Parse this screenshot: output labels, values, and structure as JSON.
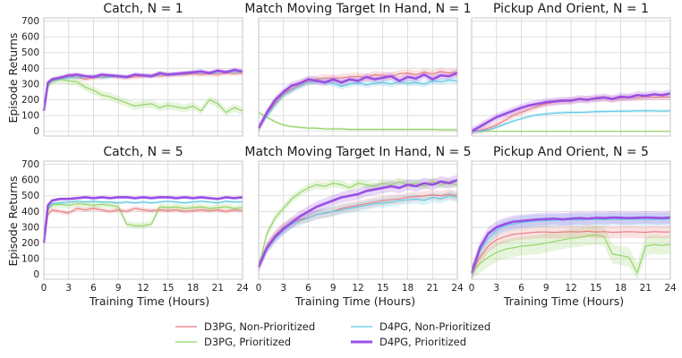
{
  "colors": {
    "d3pg_np": "#e8797d",
    "d3pg_p": "#8fd35f",
    "d4pg_np": "#5bc6e3",
    "d4pg_p": "#9b4fe3"
  },
  "legend": [
    {
      "label": "D3PG, Non-Prioritized",
      "series": "d3pg_np"
    },
    {
      "label": "D3PG, Prioritized",
      "series": "d3pg_p"
    },
    {
      "label": "D4PG, Non-Prioritized",
      "series": "d4pg_np"
    },
    {
      "label": "D4PG, Prioritized",
      "series": "d4pg_p"
    }
  ],
  "ylabel": "Episode Returns",
  "xlabel": "Training Time (Hours)",
  "chart_data": [
    {
      "type": "line",
      "title": "Catch, N = 1",
      "xlim": [
        0,
        24
      ],
      "ylim": [
        -30,
        720
      ],
      "xticks": [
        "0",
        "3",
        "6",
        "9",
        "12",
        "15",
        "18",
        "21",
        "24"
      ],
      "yticks": [
        "0",
        "100",
        "200",
        "300",
        "400",
        "500",
        "600",
        "700"
      ],
      "x": [
        0,
        0.5,
        1,
        2,
        3,
        4,
        5,
        6,
        7,
        8,
        9,
        10,
        11,
        12,
        13,
        14,
        15,
        16,
        17,
        18,
        19,
        20,
        21,
        22,
        23,
        24
      ],
      "series": [
        {
          "name": "D3PG, Non-Prioritized",
          "key": "d3pg_np",
          "values": [
            130,
            300,
            320,
            340,
            350,
            345,
            330,
            340,
            345,
            350,
            345,
            340,
            345,
            350,
            355,
            350,
            355,
            360,
            360,
            365,
            360,
            365,
            360,
            370,
            365,
            370
          ],
          "band": 15
        },
        {
          "name": "D3PG, Prioritized",
          "key": "d3pg_p",
          "values": [
            130,
            290,
            320,
            330,
            320,
            315,
            280,
            260,
            230,
            220,
            200,
            180,
            160,
            170,
            175,
            150,
            165,
            155,
            145,
            160,
            130,
            200,
            175,
            120,
            150,
            130
          ],
          "band": 25
        },
        {
          "name": "D4PG, Non-Prioritized",
          "key": "d4pg_np",
          "values": [
            130,
            300,
            320,
            335,
            340,
            345,
            345,
            350,
            340,
            345,
            350,
            345,
            355,
            355,
            350,
            360,
            365,
            360,
            365,
            370,
            375,
            370,
            375,
            380,
            375,
            380
          ],
          "band": 12
        },
        {
          "name": "D4PG, Prioritized",
          "key": "d4pg_p",
          "values": [
            130,
            310,
            330,
            340,
            355,
            360,
            350,
            345,
            360,
            355,
            350,
            345,
            360,
            355,
            350,
            370,
            360,
            365,
            370,
            375,
            380,
            370,
            385,
            375,
            390,
            380
          ],
          "band": 15
        }
      ]
    },
    {
      "type": "line",
      "title": "Match Moving Target In Hand, N = 1",
      "xlim": [
        0,
        24
      ],
      "ylim": [
        -30,
        720
      ],
      "xticks": [
        "0",
        "3",
        "6",
        "9",
        "12",
        "15",
        "18",
        "21",
        "24"
      ],
      "yticks": [
        "0",
        "100",
        "200",
        "300",
        "400",
        "500",
        "600",
        "700"
      ],
      "x": [
        0,
        1,
        2,
        3,
        4,
        5,
        6,
        7,
        8,
        9,
        10,
        11,
        12,
        13,
        14,
        15,
        16,
        17,
        18,
        19,
        20,
        21,
        22,
        23,
        24
      ],
      "series": [
        {
          "name": "D3PG, Non-Prioritized",
          "key": "d3pg_np",
          "values": [
            20,
            110,
            180,
            240,
            270,
            300,
            320,
            330,
            340,
            335,
            340,
            345,
            350,
            340,
            360,
            355,
            350,
            365,
            370,
            360,
            375,
            365,
            380,
            370,
            375
          ],
          "band": 25
        },
        {
          "name": "D3PG, Prioritized",
          "key": "d3pg_p",
          "values": [
            120,
            90,
            60,
            40,
            30,
            25,
            20,
            20,
            15,
            15,
            15,
            12,
            12,
            12,
            12,
            12,
            12,
            12,
            12,
            12,
            12,
            12,
            10,
            10,
            10
          ],
          "band": 8
        },
        {
          "name": "D4PG, Non-Prioritized",
          "key": "d4pg_np",
          "values": [
            20,
            100,
            170,
            230,
            260,
            290,
            310,
            320,
            315,
            305,
            285,
            300,
            310,
            295,
            305,
            310,
            300,
            315,
            305,
            310,
            300,
            320,
            315,
            325,
            320
          ],
          "band": 20
        },
        {
          "name": "D4PG, Prioritized",
          "key": "d4pg_p",
          "values": [
            20,
            120,
            200,
            250,
            290,
            305,
            330,
            320,
            310,
            330,
            310,
            330,
            320,
            345,
            330,
            340,
            350,
            320,
            345,
            335,
            360,
            330,
            355,
            350,
            370
          ],
          "band": 25
        }
      ]
    },
    {
      "type": "line",
      "title": "Pickup And Orient, N = 1",
      "xlim": [
        0,
        24
      ],
      "ylim": [
        -30,
        720
      ],
      "xticks": [
        "0",
        "3",
        "6",
        "9",
        "12",
        "15",
        "18",
        "21",
        "24"
      ],
      "yticks": [
        "0",
        "100",
        "200",
        "300",
        "400",
        "500",
        "600",
        "700"
      ],
      "x": [
        0,
        1,
        2,
        3,
        4,
        5,
        6,
        7,
        8,
        9,
        10,
        11,
        12,
        13,
        14,
        15,
        16,
        17,
        18,
        19,
        20,
        21,
        22,
        23,
        24
      ],
      "series": [
        {
          "name": "D3PG, Non-Prioritized",
          "key": "d3pg_np",
          "values": [
            0,
            5,
            20,
            40,
            70,
            100,
            120,
            140,
            160,
            175,
            185,
            190,
            195,
            200,
            205,
            205,
            210,
            205,
            210,
            215,
            210,
            220,
            215,
            220,
            215
          ],
          "band": 20
        },
        {
          "name": "D3PG, Prioritized",
          "key": "d3pg_p",
          "values": [
            0,
            0,
            0,
            0,
            0,
            0,
            0,
            0,
            0,
            0,
            0,
            0,
            0,
            0,
            0,
            0,
            0,
            0,
            0,
            0,
            0,
            0,
            0,
            0,
            0
          ],
          "band": 2
        },
        {
          "name": "D4PG, Non-Prioritized",
          "key": "d4pg_np",
          "values": [
            0,
            0,
            10,
            25,
            45,
            65,
            80,
            95,
            105,
            110,
            115,
            118,
            120,
            120,
            122,
            125,
            125,
            127,
            128,
            128,
            130,
            130,
            130,
            128,
            130
          ],
          "band": 10
        },
        {
          "name": "D4PG, Prioritized",
          "key": "d4pg_p",
          "values": [
            0,
            30,
            60,
            90,
            110,
            130,
            150,
            165,
            175,
            185,
            190,
            195,
            195,
            205,
            200,
            210,
            215,
            205,
            220,
            215,
            230,
            225,
            235,
            230,
            240
          ],
          "band": 25
        }
      ]
    },
    {
      "type": "line",
      "title": "Catch, N = 5",
      "xlim": [
        0,
        24
      ],
      "ylim": [
        -30,
        720
      ],
      "xticks": [
        "0",
        "3",
        "6",
        "9",
        "12",
        "15",
        "18",
        "21",
        "24"
      ],
      "yticks": [
        "0",
        "100",
        "200",
        "300",
        "400",
        "500",
        "600",
        "700"
      ],
      "x": [
        0,
        0.5,
        1,
        2,
        3,
        4,
        5,
        6,
        7,
        8,
        9,
        10,
        11,
        12,
        13,
        14,
        15,
        16,
        17,
        18,
        19,
        20,
        21,
        22,
        23,
        24
      ],
      "series": [
        {
          "name": "D3PG, Non-Prioritized",
          "key": "d3pg_np",
          "values": [
            200,
            380,
            410,
            400,
            390,
            420,
            410,
            420,
            410,
            400,
            410,
            400,
            420,
            410,
            405,
            410,
            405,
            410,
            400,
            405,
            410,
            405,
            410,
            400,
            410,
            405
          ],
          "band": 15
        },
        {
          "name": "D3PG, Prioritized",
          "key": "d3pg_p",
          "values": [
            200,
            410,
            440,
            445,
            440,
            450,
            445,
            440,
            445,
            440,
            430,
            320,
            310,
            310,
            320,
            430,
            425,
            430,
            420,
            425,
            430,
            420,
            425,
            430,
            420,
            425
          ],
          "band": 20
        },
        {
          "name": "D4PG, Non-Prioritized",
          "key": "d4pg_np",
          "values": [
            200,
            420,
            450,
            455,
            460,
            465,
            460,
            465,
            460,
            460,
            455,
            460,
            455,
            460,
            455,
            460,
            465,
            460,
            455,
            460,
            465,
            460,
            455,
            465,
            460,
            460
          ],
          "band": 10
        },
        {
          "name": "D4PG, Prioritized",
          "key": "d4pg_p",
          "values": [
            200,
            440,
            470,
            480,
            480,
            485,
            490,
            485,
            490,
            485,
            490,
            490,
            485,
            490,
            485,
            490,
            490,
            485,
            490,
            485,
            490,
            485,
            480,
            490,
            485,
            490
          ],
          "band": 10
        }
      ]
    },
    {
      "type": "line",
      "title": "Match Moving Target In Hand, N = 5",
      "xlim": [
        0,
        24
      ],
      "ylim": [
        -30,
        720
      ],
      "xticks": [
        "0",
        "3",
        "6",
        "9",
        "12",
        "15",
        "18",
        "21",
        "24"
      ],
      "yticks": [
        "0",
        "100",
        "200",
        "300",
        "400",
        "500",
        "600",
        "700"
      ],
      "x": [
        0,
        1,
        2,
        3,
        4,
        5,
        6,
        7,
        8,
        9,
        10,
        11,
        12,
        13,
        14,
        15,
        16,
        17,
        18,
        19,
        20,
        21,
        22,
        23,
        24
      ],
      "series": [
        {
          "name": "D3PG, Non-Prioritized",
          "key": "d3pg_np",
          "values": [
            50,
            180,
            250,
            300,
            330,
            350,
            360,
            380,
            390,
            400,
            420,
            430,
            440,
            450,
            460,
            470,
            475,
            480,
            490,
            495,
            500,
            505,
            500,
            510,
            500
          ],
          "band": 30
        },
        {
          "name": "D3PG, Prioritized",
          "key": "d3pg_p",
          "values": [
            50,
            260,
            360,
            420,
            480,
            520,
            550,
            570,
            560,
            580,
            570,
            550,
            580,
            570,
            560,
            580,
            570,
            590,
            570,
            580,
            560,
            590,
            570,
            580,
            570
          ],
          "band": 25
        },
        {
          "name": "D4PG, Non-Prioritized",
          "key": "d4pg_np",
          "values": [
            50,
            160,
            230,
            280,
            320,
            340,
            360,
            380,
            390,
            400,
            410,
            420,
            430,
            440,
            450,
            455,
            460,
            470,
            475,
            480,
            470,
            490,
            480,
            500,
            490
          ],
          "band": 30
        },
        {
          "name": "D4PG, Prioritized",
          "key": "d4pg_p",
          "values": [
            50,
            170,
            240,
            290,
            330,
            370,
            400,
            430,
            450,
            470,
            490,
            500,
            510,
            530,
            540,
            550,
            560,
            550,
            570,
            560,
            580,
            570,
            590,
            580,
            600
          ],
          "band": 35
        }
      ]
    },
    {
      "type": "line",
      "title": "Pickup And Orient, N = 5",
      "xlim": [
        0,
        24
      ],
      "ylim": [
        -30,
        720
      ],
      "xticks": [
        "0",
        "3",
        "6",
        "9",
        "12",
        "15",
        "18",
        "21",
        "24"
      ],
      "yticks": [
        "0",
        "100",
        "200",
        "300",
        "400",
        "500",
        "600",
        "700"
      ],
      "x": [
        0,
        1,
        2,
        3,
        4,
        5,
        6,
        7,
        8,
        9,
        10,
        11,
        12,
        13,
        14,
        15,
        16,
        17,
        18,
        19,
        20,
        21,
        22,
        23,
        24
      ],
      "series": [
        {
          "name": "D3PG, Non-Prioritized",
          "key": "d3pg_np",
          "values": [
            10,
            110,
            180,
            220,
            240,
            255,
            260,
            265,
            270,
            270,
            268,
            270,
            272,
            270,
            275,
            270,
            272,
            268,
            270,
            272,
            270,
            268,
            272,
            270,
            270
          ],
          "band": 40
        },
        {
          "name": "D3PG, Prioritized",
          "key": "d3pg_p",
          "values": [
            10,
            70,
            110,
            140,
            160,
            170,
            180,
            185,
            190,
            200,
            210,
            220,
            230,
            235,
            245,
            250,
            240,
            130,
            120,
            110,
            10,
            180,
            190,
            185,
            190
          ],
          "band": 60
        },
        {
          "name": "D4PG, Non-Prioritized",
          "key": "d4pg_np",
          "values": [
            10,
            150,
            230,
            280,
            310,
            320,
            330,
            335,
            340,
            340,
            345,
            345,
            348,
            345,
            350,
            350,
            348,
            352,
            350,
            350,
            352,
            350,
            350,
            352,
            350
          ],
          "band": 40
        },
        {
          "name": "D4PG, Prioritized",
          "key": "d4pg_p",
          "values": [
            10,
            170,
            260,
            300,
            320,
            335,
            340,
            345,
            350,
            352,
            355,
            350,
            355,
            358,
            355,
            360,
            358,
            362,
            360,
            358,
            360,
            362,
            360,
            358,
            362
          ],
          "band": 40
        }
      ]
    }
  ]
}
